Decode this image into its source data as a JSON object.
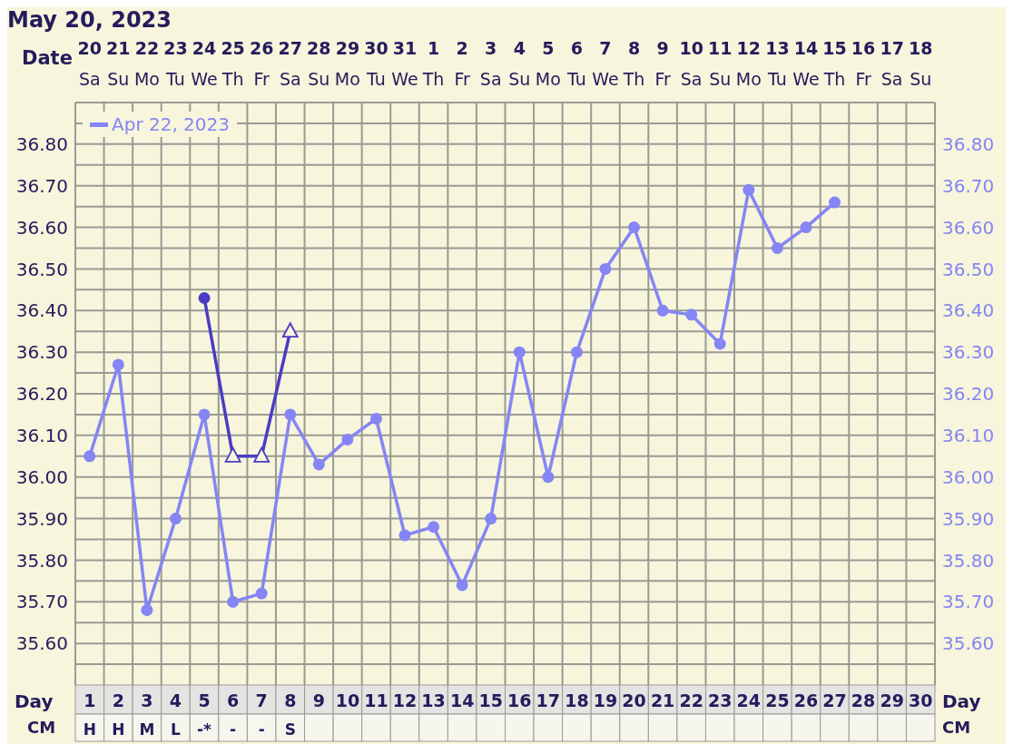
{
  "chart_data": {
    "type": "line",
    "title": "May 20, 2023",
    "xlabel": "Day",
    "categories": [
      "1",
      "2",
      "3",
      "4",
      "5",
      "6",
      "7",
      "8",
      "9",
      "10",
      "11",
      "12",
      "13",
      "14",
      "15",
      "16",
      "17",
      "18",
      "19",
      "20",
      "21",
      "22",
      "23",
      "24",
      "25",
      "26",
      "27",
      "28",
      "29",
      "30"
    ],
    "ylim": [
      35.5,
      36.9
    ],
    "yticks": [
      {
        "value": 35.6,
        "label": "35.60"
      },
      {
        "value": 35.7,
        "label": "35.70"
      },
      {
        "value": 35.8,
        "label": "35.80"
      },
      {
        "value": 35.9,
        "label": "35.90"
      },
      {
        "value": 36.0,
        "label": "36.00"
      },
      {
        "value": 36.1,
        "label": "36.10"
      },
      {
        "value": 36.2,
        "label": "36.20"
      },
      {
        "value": 36.3,
        "label": "36.30"
      },
      {
        "value": 36.4,
        "label": "36.40"
      },
      {
        "value": 36.5,
        "label": "36.50"
      },
      {
        "value": 36.6,
        "label": "36.60"
      },
      {
        "value": 36.7,
        "label": "36.70"
      },
      {
        "value": 36.8,
        "label": "36.80"
      }
    ],
    "y2lim": [
      35.5,
      36.9
    ],
    "y2ticks": [
      {
        "value": 35.6,
        "label": "35.60"
      },
      {
        "value": 35.7,
        "label": "35.70"
      },
      {
        "value": 35.8,
        "label": "35.80"
      },
      {
        "value": 35.9,
        "label": "35.90"
      },
      {
        "value": 36.0,
        "label": "36.00"
      },
      {
        "value": 36.1,
        "label": "36.10"
      },
      {
        "value": 36.2,
        "label": "36.20"
      },
      {
        "value": 36.3,
        "label": "36.30"
      },
      {
        "value": 36.4,
        "label": "36.40"
      },
      {
        "value": 36.5,
        "label": "36.50"
      },
      {
        "value": 36.6,
        "label": "36.60"
      },
      {
        "value": 36.7,
        "label": "36.70"
      },
      {
        "value": 36.8,
        "label": "36.80"
      }
    ],
    "grid": true,
    "legend": "top left",
    "series": [
      {
        "name": "Apr 22, 2023",
        "marker": "circle",
        "color": "#8585f5",
        "values": [
          36.05,
          36.27,
          35.68,
          35.9,
          36.15,
          35.7,
          35.72,
          36.15,
          36.03,
          36.09,
          36.14,
          35.86,
          35.88,
          35.74,
          35.9,
          36.3,
          36.0,
          36.3,
          36.5,
          36.6,
          36.4,
          36.39,
          36.32,
          36.69,
          36.55,
          36.6,
          36.66,
          null,
          null,
          null
        ]
      },
      {
        "marker": "none",
        "color": "#4a3cc4",
        "values": [
          null,
          null,
          null,
          null,
          36.43,
          36.05,
          36.05,
          36.35,
          null,
          null,
          null,
          null,
          null,
          null,
          null,
          null,
          null,
          null,
          null,
          null,
          null,
          null,
          null,
          null,
          null,
          null,
          null,
          null,
          null,
          null
        ]
      },
      {
        "type": "scatter",
        "marker": "circle",
        "color": "#4a3cc4",
        "values": [
          null,
          null,
          null,
          null,
          36.43,
          null,
          null,
          null,
          null,
          null,
          null,
          null,
          null,
          null,
          null,
          null,
          null,
          null,
          null,
          null,
          null,
          null,
          null,
          null,
          null,
          null,
          null,
          null,
          null,
          null
        ]
      },
      {
        "type": "scatter",
        "marker": "triangle",
        "color": "#4a3cc4",
        "values": [
          null,
          null,
          null,
          null,
          null,
          36.05,
          36.05,
          36.35,
          null,
          null,
          null,
          null,
          null,
          null,
          null,
          null,
          null,
          null,
          null,
          null,
          null,
          null,
          null,
          null,
          null,
          null,
          null,
          null,
          null,
          null
        ]
      }
    ],
    "annotations": [
      "Date",
      "20\nSa",
      "21\nSu",
      "22\nMo",
      "23\nTu",
      "24\nWe",
      "25\nTh",
      "26\nFr",
      "27\nSa",
      "28\nSu",
      "29\nMo",
      "30\nTu",
      "31\nWe",
      "1\nTh",
      "2\nFr",
      "3\nSa",
      "4\nSu",
      "5\nMo",
      "6\nTu",
      "7\nWe",
      "8\nTh",
      "9\nFr",
      "10\nSa",
      "11\nSu",
      "12\nMo",
      "13\nTu",
      "14\nWe",
      "15\nTh",
      "16\nFr",
      "17\nSa",
      "18\nSu",
      "CM",
      "H",
      "H",
      "M",
      "L",
      "-*",
      "-",
      "-",
      "S"
    ]
  }
}
